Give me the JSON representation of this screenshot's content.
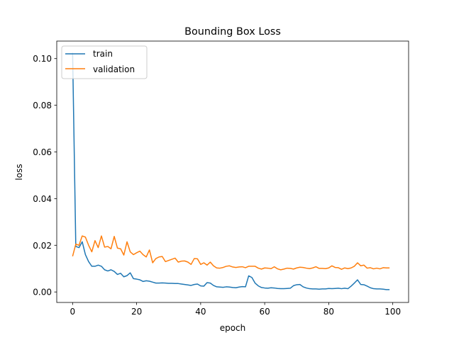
{
  "chart_data": {
    "type": "line",
    "title": "Bounding Box Loss",
    "xlabel": "epoch",
    "ylabel": "loss",
    "xlim": [
      -4.95,
      104.95
    ],
    "ylim": [
      -0.0045,
      0.1075
    ],
    "xticks": [
      0,
      20,
      40,
      60,
      80,
      100
    ],
    "xtick_labels": [
      "0",
      "20",
      "40",
      "60",
      "80",
      "100"
    ],
    "yticks": [
      0.0,
      0.02,
      0.04,
      0.06,
      0.08,
      0.1
    ],
    "ytick_labels": [
      "0.00",
      "0.02",
      "0.04",
      "0.06",
      "0.08",
      "0.10"
    ],
    "grid": false,
    "legend_position": "upper left",
    "x": [
      0,
      1,
      2,
      3,
      4,
      5,
      6,
      7,
      8,
      9,
      10,
      11,
      12,
      13,
      14,
      15,
      16,
      17,
      18,
      19,
      20,
      21,
      22,
      23,
      24,
      25,
      26,
      27,
      28,
      29,
      30,
      31,
      32,
      33,
      34,
      35,
      36,
      37,
      38,
      39,
      40,
      41,
      42,
      43,
      44,
      45,
      46,
      47,
      48,
      49,
      50,
      51,
      52,
      53,
      54,
      55,
      56,
      57,
      58,
      59,
      60,
      61,
      62,
      63,
      64,
      65,
      66,
      67,
      68,
      69,
      70,
      71,
      72,
      73,
      74,
      75,
      76,
      77,
      78,
      79,
      80,
      81,
      82,
      83,
      84,
      85,
      86,
      87,
      88,
      89,
      90,
      91,
      92,
      93,
      94,
      95,
      96,
      97,
      98,
      99
    ],
    "series": [
      {
        "name": "train",
        "color": "#1f77b4",
        "values": [
          0.1025,
          0.0195,
          0.019,
          0.0215,
          0.016,
          0.013,
          0.011,
          0.011,
          0.0115,
          0.011,
          0.0095,
          0.009,
          0.0095,
          0.0088,
          0.0075,
          0.008,
          0.0065,
          0.007,
          0.0082,
          0.0057,
          0.0055,
          0.0052,
          0.0045,
          0.0048,
          0.0046,
          0.0042,
          0.0038,
          0.0038,
          0.0039,
          0.0038,
          0.0037,
          0.0037,
          0.0036,
          0.0036,
          0.0034,
          0.0032,
          0.003,
          0.0028,
          0.0032,
          0.0034,
          0.0026,
          0.0025,
          0.004,
          0.0038,
          0.0028,
          0.0022,
          0.0021,
          0.002,
          0.0022,
          0.0021,
          0.0019,
          0.0018,
          0.0021,
          0.0023,
          0.0022,
          0.0069,
          0.0062,
          0.0038,
          0.0026,
          0.0019,
          0.0017,
          0.0016,
          0.0018,
          0.0017,
          0.0015,
          0.0014,
          0.0014,
          0.0015,
          0.0016,
          0.0027,
          0.0031,
          0.0032,
          0.0022,
          0.0017,
          0.0014,
          0.0013,
          0.0013,
          0.0012,
          0.0013,
          0.0013,
          0.0015,
          0.0014,
          0.0015,
          0.0016,
          0.0014,
          0.0016,
          0.0014,
          0.0025,
          0.0038,
          0.0052,
          0.0032,
          0.0031,
          0.0025,
          0.0018,
          0.0014,
          0.0013,
          0.0013,
          0.0012,
          0.001,
          0.001
        ]
      },
      {
        "name": "validation",
        "color": "#ff7f0e",
        "values": [
          0.0153,
          0.0205,
          0.02,
          0.024,
          0.0235,
          0.02,
          0.0172,
          0.022,
          0.019,
          0.024,
          0.0192,
          0.0195,
          0.0185,
          0.0238,
          0.0188,
          0.0185,
          0.0158,
          0.0215,
          0.0172,
          0.016,
          0.0168,
          0.0175,
          0.016,
          0.015,
          0.018,
          0.0125,
          0.0143,
          0.015,
          0.0152,
          0.013,
          0.0135,
          0.014,
          0.0145,
          0.0128,
          0.0132,
          0.0133,
          0.0128,
          0.0118,
          0.0143,
          0.0142,
          0.0118,
          0.0125,
          0.0115,
          0.0128,
          0.0112,
          0.0103,
          0.0102,
          0.0105,
          0.011,
          0.0112,
          0.0107,
          0.0105,
          0.0107,
          0.0108,
          0.0104,
          0.011,
          0.011,
          0.011,
          0.0102,
          0.0098,
          0.0103,
          0.0102,
          0.01,
          0.0108,
          0.0099,
          0.0095,
          0.0098,
          0.0102,
          0.0101,
          0.0098,
          0.0103,
          0.0106,
          0.0105,
          0.0102,
          0.01,
          0.0103,
          0.0108,
          0.0101,
          0.0101,
          0.01,
          0.0103,
          0.0112,
          0.0105,
          0.0104,
          0.0097,
          0.0103,
          0.01,
          0.0103,
          0.011,
          0.0125,
          0.0112,
          0.0115,
          0.0102,
          0.0104,
          0.0099,
          0.0102,
          0.0099,
          0.0104,
          0.0103,
          0.0103
        ]
      }
    ]
  }
}
